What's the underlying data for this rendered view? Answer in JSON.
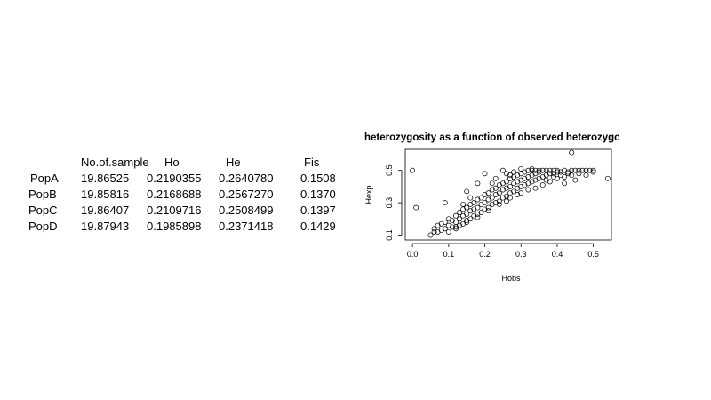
{
  "table": {
    "headers": [
      "No.of.sample",
      "Ho",
      "He",
      "Fis"
    ],
    "rows": [
      {
        "pop": "PopA",
        "n": "19.86525",
        "ho": "0.2190355",
        "he": "0.2640780",
        "fis": "0.1508"
      },
      {
        "pop": "PopB",
        "n": "19.85816",
        "ho": "0.2168688",
        "he": "0.2567270",
        "fis": "0.1370"
      },
      {
        "pop": "PopC",
        "n": "19.86407",
        "ho": "0.2109716",
        "he": "0.2508499",
        "fis": "0.1397"
      },
      {
        "pop": "PopD",
        "n": "19.87943",
        "ho": "0.1985898",
        "he": "0.2371418",
        "fis": "0.1429"
      }
    ]
  },
  "chart_data": {
    "type": "scatter",
    "title": "heterozygosity as a function of observed heterozygc",
    "xlabel": "Hobs",
    "ylabel": "Hexp",
    "xlim": [
      -0.02,
      0.55
    ],
    "ylim": [
      0.07,
      0.63
    ],
    "xticks": [
      "0.0",
      "0.1",
      "0.2",
      "0.3",
      "0.4",
      "0.5"
    ],
    "yticks": [
      "0.1",
      "0.3",
      "0.5"
    ],
    "grid": false,
    "legend": "none",
    "marker": "open-circle",
    "point_color": "#000000",
    "points": [
      [
        0.0,
        0.5
      ],
      [
        0.01,
        0.27
      ],
      [
        0.44,
        0.61
      ],
      [
        0.54,
        0.45
      ],
      [
        0.09,
        0.3
      ],
      [
        0.2,
        0.48
      ],
      [
        0.25,
        0.5
      ],
      [
        0.22,
        0.42
      ],
      [
        0.15,
        0.37
      ],
      [
        0.18,
        0.42
      ],
      [
        0.23,
        0.45
      ],
      [
        0.27,
        0.47
      ],
      [
        0.16,
        0.33
      ],
      [
        0.14,
        0.29
      ],
      [
        0.05,
        0.1
      ],
      [
        0.06,
        0.12
      ],
      [
        0.06,
        0.14
      ],
      [
        0.07,
        0.12
      ],
      [
        0.07,
        0.16
      ],
      [
        0.08,
        0.13
      ],
      [
        0.08,
        0.17
      ],
      [
        0.09,
        0.14
      ],
      [
        0.09,
        0.18
      ],
      [
        0.1,
        0.12
      ],
      [
        0.1,
        0.16
      ],
      [
        0.1,
        0.2
      ],
      [
        0.11,
        0.15
      ],
      [
        0.11,
        0.19
      ],
      [
        0.12,
        0.14
      ],
      [
        0.12,
        0.18
      ],
      [
        0.12,
        0.22
      ],
      [
        0.13,
        0.16
      ],
      [
        0.13,
        0.2
      ],
      [
        0.13,
        0.24
      ],
      [
        0.14,
        0.17
      ],
      [
        0.14,
        0.22
      ],
      [
        0.14,
        0.26
      ],
      [
        0.15,
        0.19
      ],
      [
        0.15,
        0.23
      ],
      [
        0.15,
        0.27
      ],
      [
        0.16,
        0.2
      ],
      [
        0.16,
        0.25
      ],
      [
        0.16,
        0.29
      ],
      [
        0.17,
        0.22
      ],
      [
        0.17,
        0.26
      ],
      [
        0.17,
        0.3
      ],
      [
        0.18,
        0.23
      ],
      [
        0.18,
        0.27
      ],
      [
        0.18,
        0.32
      ],
      [
        0.19,
        0.24
      ],
      [
        0.19,
        0.29
      ],
      [
        0.19,
        0.33
      ],
      [
        0.2,
        0.26
      ],
      [
        0.2,
        0.3
      ],
      [
        0.2,
        0.35
      ],
      [
        0.21,
        0.27
      ],
      [
        0.21,
        0.32
      ],
      [
        0.21,
        0.36
      ],
      [
        0.22,
        0.29
      ],
      [
        0.22,
        0.33
      ],
      [
        0.22,
        0.38
      ],
      [
        0.23,
        0.3
      ],
      [
        0.23,
        0.35
      ],
      [
        0.23,
        0.39
      ],
      [
        0.24,
        0.31
      ],
      [
        0.24,
        0.36
      ],
      [
        0.24,
        0.41
      ],
      [
        0.25,
        0.33
      ],
      [
        0.25,
        0.38
      ],
      [
        0.25,
        0.42
      ],
      [
        0.26,
        0.34
      ],
      [
        0.26,
        0.39
      ],
      [
        0.26,
        0.43
      ],
      [
        0.27,
        0.36
      ],
      [
        0.27,
        0.4
      ],
      [
        0.27,
        0.45
      ],
      [
        0.28,
        0.37
      ],
      [
        0.28,
        0.42
      ],
      [
        0.28,
        0.46
      ],
      [
        0.29,
        0.39
      ],
      [
        0.29,
        0.43
      ],
      [
        0.29,
        0.47
      ],
      [
        0.3,
        0.4
      ],
      [
        0.3,
        0.44
      ],
      [
        0.3,
        0.48
      ],
      [
        0.31,
        0.41
      ],
      [
        0.31,
        0.45
      ],
      [
        0.31,
        0.49
      ],
      [
        0.32,
        0.42
      ],
      [
        0.32,
        0.46
      ],
      [
        0.32,
        0.5
      ],
      [
        0.33,
        0.43
      ],
      [
        0.33,
        0.47
      ],
      [
        0.33,
        0.5
      ],
      [
        0.34,
        0.44
      ],
      [
        0.34,
        0.48
      ],
      [
        0.34,
        0.5
      ],
      [
        0.35,
        0.45
      ],
      [
        0.35,
        0.49
      ],
      [
        0.36,
        0.46
      ],
      [
        0.36,
        0.5
      ],
      [
        0.37,
        0.47
      ],
      [
        0.37,
        0.5
      ],
      [
        0.38,
        0.48
      ],
      [
        0.38,
        0.5
      ],
      [
        0.39,
        0.48
      ],
      [
        0.39,
        0.5
      ],
      [
        0.4,
        0.49
      ],
      [
        0.4,
        0.5
      ],
      [
        0.41,
        0.49
      ],
      [
        0.42,
        0.5
      ],
      [
        0.43,
        0.49
      ],
      [
        0.44,
        0.5
      ],
      [
        0.45,
        0.5
      ],
      [
        0.46,
        0.5
      ],
      [
        0.47,
        0.5
      ],
      [
        0.48,
        0.5
      ],
      [
        0.49,
        0.5
      ],
      [
        0.5,
        0.5
      ],
      [
        0.34,
        0.39
      ],
      [
        0.36,
        0.41
      ],
      [
        0.38,
        0.43
      ],
      [
        0.4,
        0.45
      ],
      [
        0.42,
        0.46
      ],
      [
        0.44,
        0.47
      ],
      [
        0.46,
        0.48
      ],
      [
        0.3,
        0.36
      ],
      [
        0.32,
        0.38
      ],
      [
        0.27,
        0.33
      ],
      [
        0.24,
        0.29
      ],
      [
        0.21,
        0.25
      ],
      [
        0.18,
        0.21
      ],
      [
        0.15,
        0.18
      ],
      [
        0.12,
        0.15
      ],
      [
        0.35,
        0.5
      ],
      [
        0.33,
        0.51
      ],
      [
        0.3,
        0.51
      ],
      [
        0.28,
        0.49
      ],
      [
        0.26,
        0.48
      ],
      [
        0.42,
        0.42
      ],
      [
        0.45,
        0.44
      ],
      [
        0.48,
        0.47
      ],
      [
        0.5,
        0.49
      ],
      [
        0.37,
        0.44
      ],
      [
        0.41,
        0.47
      ],
      [
        0.43,
        0.48
      ],
      [
        0.39,
        0.46
      ],
      [
        0.29,
        0.35
      ],
      [
        0.26,
        0.31
      ]
    ]
  }
}
